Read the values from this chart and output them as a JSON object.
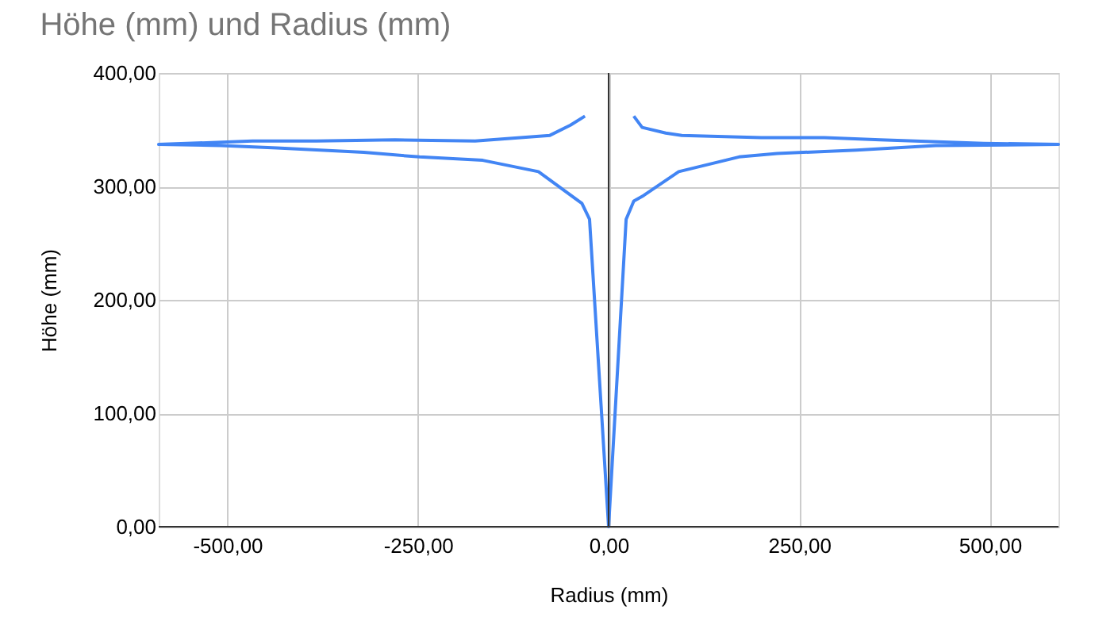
{
  "chart_data": {
    "type": "line",
    "title": "Höhe (mm) und Radius (mm)",
    "xlabel": "Radius (mm)",
    "ylabel": "Höhe (mm)",
    "x": [
      -31,
      -50,
      -77,
      -175,
      -280,
      -383,
      -467,
      -590,
      -508,
      -435,
      -321,
      -248,
      -165,
      -92,
      -35,
      -25,
      0,
      23,
      33,
      46,
      92,
      171,
      221,
      325,
      429,
      590,
      492,
      356,
      283,
      200,
      96,
      75,
      44,
      33
    ],
    "series": [
      {
        "color": "#4285f4",
        "values": [
          362,
          354,
          345,
          340,
          341,
          340,
          340,
          337,
          336,
          334,
          330,
          326,
          323,
          313,
          285,
          271,
          0,
          271,
          287,
          292,
          313,
          326,
          329,
          332,
          336,
          337,
          338,
          341,
          343,
          343,
          345,
          347,
          352,
          362
        ]
      }
    ],
    "xlim": [
      -590,
      590
    ],
    "ylim": [
      0,
      400
    ],
    "xticks": [
      {
        "value": -500,
        "label": "-500,00"
      },
      {
        "value": -250,
        "label": "-250,00"
      },
      {
        "value": 0,
        "label": "0,00"
      },
      {
        "value": 250,
        "label": "250,00"
      },
      {
        "value": 500,
        "label": "500,00"
      }
    ],
    "yticks": [
      {
        "value": 0,
        "label": "0,00"
      },
      {
        "value": 100,
        "label": "100,00"
      },
      {
        "value": 200,
        "label": "200,00"
      },
      {
        "value": 300,
        "label": "300,00"
      },
      {
        "value": 400,
        "label": "400,00"
      }
    ],
    "ref_lines": [
      {
        "axis": "x",
        "value": 0,
        "color": "#333333"
      }
    ],
    "grid": true,
    "marker": "none",
    "line_style": "solid"
  }
}
